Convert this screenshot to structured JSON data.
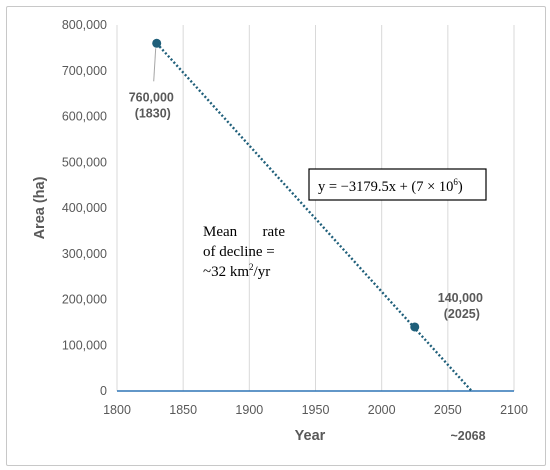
{
  "chart_data": {
    "type": "scatter",
    "xlabel": "Year",
    "ylabel": "Area (ha)",
    "xlim": [
      1800,
      2100
    ],
    "ylim": [
      0,
      800000
    ],
    "x_ticks": [
      "1800",
      "1850",
      "1900",
      "1950",
      "2000",
      "2050",
      "2100"
    ],
    "y_ticks": [
      "0",
      "100,000",
      "200,000",
      "300,000",
      "400,000",
      "500,000",
      "600,000",
      "700,000",
      "800,000"
    ],
    "grid": "vertical",
    "series": [
      {
        "points": [
          {
            "x": 1830,
            "y": 760000,
            "label_value": "760,000",
            "label_year": "(1830)"
          },
          {
            "x": 2025,
            "y": 140000,
            "label_value": "140,000",
            "label_year": "(2025)"
          }
        ],
        "color": "#1f5f7a"
      }
    ],
    "trendline": {
      "x_start": 1830,
      "y_start": 760000,
      "x_end": 2068,
      "y_end": 0,
      "style": "dotted",
      "equation_prefix": "y = −3179.5x + (7 × 10",
      "equation_exp": "6",
      "equation_suffix": ")"
    },
    "annotations": {
      "intercept_label": "~2068",
      "rate_line1_a": "Mean",
      "rate_line1_b": "rate",
      "rate_line2": "of decline =",
      "rate_line3_a": "~32 km",
      "rate_line3_sup": "2",
      "rate_line3_b": "/yr"
    },
    "colors": {
      "marker": "#1f5f7a",
      "axis": "#2e75b6",
      "grid": "#d9d9d9",
      "text": "#595959"
    }
  }
}
